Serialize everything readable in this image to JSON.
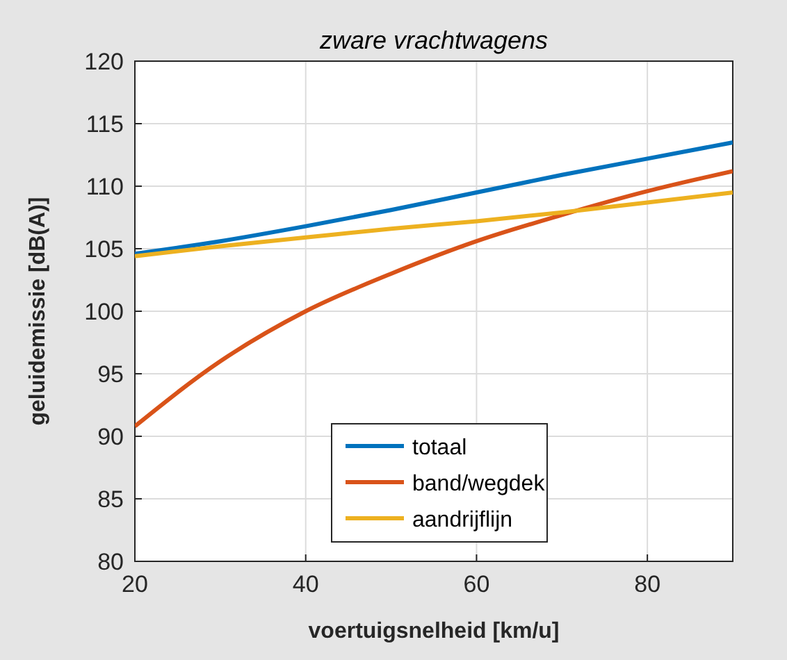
{
  "chart_data": {
    "type": "line",
    "title": "zware vrachtwagens",
    "xlabel": "voertuigsnelheid [km/u]",
    "ylabel": "geluidemissie [dB(A)]",
    "x": [
      20,
      30,
      40,
      50,
      60,
      70,
      80,
      90
    ],
    "series": [
      {
        "name": "totaal",
        "color": "#0072bd",
        "values": [
          104.6,
          105.6,
          106.8,
          108.1,
          109.5,
          110.9,
          112.2,
          113.5
        ]
      },
      {
        "name": "band/wegdek",
        "color": "#d95319",
        "values": [
          90.8,
          96,
          100,
          103,
          105.6,
          107.7,
          109.6,
          111.2
        ]
      },
      {
        "name": "aandrijflijn",
        "color": "#edb120",
        "values": [
          104.4,
          105.2,
          105.9,
          106.6,
          107.2,
          107.9,
          108.7,
          109.5
        ]
      }
    ],
    "xlim": [
      20,
      90
    ],
    "xticks": [
      20,
      40,
      60,
      80
    ],
    "ylim": [
      80,
      120
    ],
    "yticks": [
      80,
      85,
      90,
      95,
      100,
      105,
      110,
      115,
      120
    ],
    "grid": true,
    "legend": "bottom",
    "line_style": "solid",
    "marker": "none"
  }
}
